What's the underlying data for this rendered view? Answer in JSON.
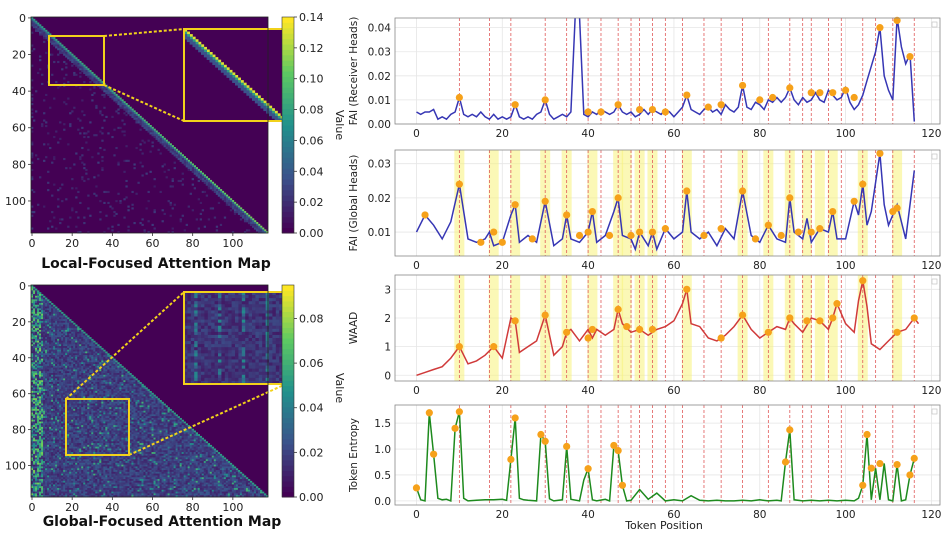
{
  "chart_data": [
    {
      "type": "heatmap",
      "title": "Local-Focused Attention Map",
      "pattern": "local",
      "x_ticks": [
        0,
        20,
        40,
        60,
        80,
        100
      ],
      "y_ticks": [
        0,
        20,
        40,
        60,
        80,
        100
      ],
      "size": 118,
      "colorbar_label": "Value",
      "colorbar_ticks": [
        "0.00",
        "0.02",
        "0.04",
        "0.06",
        "0.08",
        "0.10",
        "0.12",
        "0.14"
      ],
      "colorbar_range": [
        0,
        0.14
      ]
    },
    {
      "type": "heatmap",
      "title": "Global-Focused Attention Map",
      "pattern": "global",
      "x_ticks": [
        0,
        20,
        40,
        60,
        80,
        100
      ],
      "y_ticks": [
        0,
        20,
        40,
        60,
        80,
        100
      ],
      "size": 118,
      "colorbar_label": "Value",
      "colorbar_ticks": [
        "0.00",
        "0.02",
        "0.04",
        "0.06",
        "0.08"
      ],
      "colorbar_range": [
        0,
        0.095
      ]
    },
    {
      "type": "line",
      "ylabel": "FAI (Receiver Heads)",
      "xlim": [
        -5,
        122
      ],
      "ylim": [
        0,
        0.044
      ],
      "yticks": [
        "0.00",
        "0.01",
        "0.02",
        "0.03",
        "0.04"
      ],
      "ytick_values": [
        0,
        0.01,
        0.02,
        0.03,
        0.04
      ],
      "xticks": [
        "0",
        "20",
        "40",
        "60",
        "80",
        "100",
        "120"
      ],
      "color": "#3636b4",
      "x": [
        0,
        1,
        2,
        3,
        4,
        5,
        6,
        7,
        8,
        9,
        10,
        11,
        12,
        13,
        14,
        15,
        16,
        17,
        18,
        19,
        20,
        21,
        22,
        23,
        24,
        25,
        26,
        27,
        28,
        29,
        30,
        31,
        32,
        33,
        34,
        35,
        36,
        37,
        38,
        39,
        40,
        41,
        42,
        43,
        44,
        45,
        46,
        47,
        48,
        49,
        50,
        51,
        52,
        53,
        54,
        55,
        56,
        57,
        58,
        59,
        60,
        61,
        62,
        63,
        64,
        65,
        66,
        67,
        68,
        69,
        70,
        71,
        72,
        73,
        74,
        75,
        76,
        77,
        78,
        79,
        80,
        81,
        82,
        83,
        84,
        85,
        86,
        87,
        88,
        89,
        90,
        91,
        92,
        93,
        94,
        95,
        96,
        97,
        98,
        99,
        100,
        101,
        102,
        103,
        104,
        105,
        106,
        107,
        108,
        109,
        110,
        111,
        112,
        113,
        114,
        115,
        116
      ],
      "y": [
        0.005,
        0.004,
        0.005,
        0.005,
        0.006,
        0.002,
        0.003,
        0.002,
        0.004,
        0.005,
        0.011,
        0.004,
        0.003,
        0.004,
        0.003,
        0.005,
        0.003,
        0.002,
        0.004,
        0.002,
        0.003,
        0.002,
        0.003,
        0.008,
        0.003,
        0.002,
        0.003,
        0.002,
        0.004,
        0.005,
        0.01,
        0.004,
        0.002,
        0.003,
        0.004,
        0.003,
        0.005,
        0.045,
        0.045,
        0.004,
        0.003,
        0.005,
        0.004,
        0.006,
        0.005,
        0.004,
        0.005,
        0.008,
        0.005,
        0.004,
        0.005,
        0.003,
        0.004,
        0.006,
        0.004,
        0.006,
        0.005,
        0.004,
        0.006,
        0.005,
        0.003,
        0.005,
        0.007,
        0.012,
        0.006,
        0.005,
        0.004,
        0.006,
        0.007,
        0.005,
        0.006,
        0.004,
        0.008,
        0.006,
        0.005,
        0.007,
        0.016,
        0.007,
        0.006,
        0.009,
        0.008,
        0.006,
        0.01,
        0.009,
        0.011,
        0.009,
        0.011,
        0.015,
        0.01,
        0.008,
        0.011,
        0.009,
        0.01,
        0.013,
        0.01,
        0.009,
        0.014,
        0.012,
        0.01,
        0.011,
        0.015,
        0.009,
        0.006,
        0.008,
        0.012,
        0.018,
        0.024,
        0.03,
        0.04,
        0.02,
        0.014,
        0.01,
        0.044,
        0.032,
        0.025,
        0.029,
        0.001
      ],
      "markers": [
        [
          10,
          0.011
        ],
        [
          23,
          0.008
        ],
        [
          30,
          0.01
        ],
        [
          40,
          0.005
        ],
        [
          43,
          0.005
        ],
        [
          47,
          0.008
        ],
        [
          52,
          0.006
        ],
        [
          55,
          0.006
        ],
        [
          58,
          0.005
        ],
        [
          63,
          0.012
        ],
        [
          68,
          0.007
        ],
        [
          71,
          0.008
        ],
        [
          76,
          0.016
        ],
        [
          80,
          0.01
        ],
        [
          83,
          0.011
        ],
        [
          87,
          0.015
        ],
        [
          92,
          0.013
        ],
        [
          94,
          0.013
        ],
        [
          97,
          0.013
        ],
        [
          100,
          0.014
        ],
        [
          102,
          0.011
        ],
        [
          108,
          0.04
        ],
        [
          112,
          0.043
        ],
        [
          115,
          0.028
        ]
      ],
      "vlines": [
        10,
        17,
        22,
        30,
        35,
        40,
        43,
        47,
        50,
        52,
        55,
        58,
        62,
        67,
        71,
        76,
        82,
        87,
        90,
        92,
        96,
        99,
        104,
        107,
        111,
        116
      ]
    },
    {
      "type": "line",
      "ylabel": "FAI (Global Heads)",
      "xlim": [
        -5,
        122
      ],
      "ylim": [
        0.003,
        0.034
      ],
      "yticks": [
        "0.01",
        "0.02",
        "0.03"
      ],
      "ytick_values": [
        0.01,
        0.02,
        0.03
      ],
      "xticks": [
        "0",
        "20",
        "40",
        "60",
        "80",
        "100",
        "120"
      ],
      "color": "#3636b4",
      "x": [
        0,
        2,
        4,
        6,
        8,
        10,
        12,
        14,
        16,
        17,
        18,
        20,
        22,
        23,
        24,
        26,
        28,
        30,
        32,
        34,
        35,
        36,
        38,
        40,
        41,
        42,
        44,
        46,
        47,
        48,
        50,
        51,
        52,
        54,
        55,
        56,
        58,
        60,
        62,
        63,
        64,
        66,
        68,
        70,
        72,
        74,
        76,
        78,
        80,
        82,
        84,
        86,
        87,
        88,
        90,
        91,
        92,
        94,
        96,
        97,
        98,
        100,
        102,
        103,
        104,
        105,
        106,
        108,
        109,
        110,
        112,
        114,
        116
      ],
      "y": [
        0.01,
        0.015,
        0.012,
        0.008,
        0.013,
        0.024,
        0.008,
        0.007,
        0.008,
        0.01,
        0.006,
        0.007,
        0.015,
        0.018,
        0.007,
        0.009,
        0.007,
        0.019,
        0.006,
        0.008,
        0.015,
        0.008,
        0.007,
        0.01,
        0.016,
        0.007,
        0.009,
        0.016,
        0.02,
        0.009,
        0.008,
        0.005,
        0.01,
        0.006,
        0.01,
        0.005,
        0.011,
        0.008,
        0.01,
        0.022,
        0.01,
        0.008,
        0.01,
        0.006,
        0.011,
        0.008,
        0.022,
        0.009,
        0.007,
        0.012,
        0.008,
        0.007,
        0.02,
        0.01,
        0.008,
        0.014,
        0.007,
        0.011,
        0.01,
        0.016,
        0.008,
        0.008,
        0.019,
        0.015,
        0.024,
        0.012,
        0.016,
        0.033,
        0.018,
        0.012,
        0.018,
        0.008,
        0.028
      ],
      "markers": [
        [
          2,
          0.015
        ],
        [
          10,
          0.024
        ],
        [
          15,
          0.007
        ],
        [
          18,
          0.01
        ],
        [
          20,
          0.007
        ],
        [
          23,
          0.018
        ],
        [
          27,
          0.008
        ],
        [
          30,
          0.019
        ],
        [
          35,
          0.015
        ],
        [
          38,
          0.009
        ],
        [
          40,
          0.01
        ],
        [
          41,
          0.016
        ],
        [
          45,
          0.009
        ],
        [
          47,
          0.02
        ],
        [
          50,
          0.009
        ],
        [
          52,
          0.01
        ],
        [
          55,
          0.01
        ],
        [
          58,
          0.011
        ],
        [
          63,
          0.022
        ],
        [
          67,
          0.009
        ],
        [
          71,
          0.011
        ],
        [
          76,
          0.022
        ],
        [
          79,
          0.008
        ],
        [
          82,
          0.012
        ],
        [
          85,
          0.009
        ],
        [
          87,
          0.02
        ],
        [
          89,
          0.01
        ],
        [
          92,
          0.01
        ],
        [
          94,
          0.011
        ],
        [
          97,
          0.016
        ],
        [
          102,
          0.019
        ],
        [
          104,
          0.024
        ],
        [
          108,
          0.033
        ],
        [
          111,
          0.016
        ],
        [
          112,
          0.017
        ]
      ],
      "vlines": [
        10,
        17,
        22,
        30,
        35,
        40,
        43,
        47,
        50,
        52,
        55,
        58,
        62,
        67,
        71,
        76,
        82,
        87,
        90,
        92,
        96,
        99,
        104,
        107,
        111,
        116
      ],
      "highlights": [
        10,
        18,
        23,
        30,
        35,
        41,
        47,
        49,
        52,
        55,
        63,
        76,
        82,
        87,
        91,
        94,
        97,
        104,
        112
      ]
    },
    {
      "type": "line",
      "ylabel": "WAAD",
      "xlim": [
        -5,
        122
      ],
      "ylim": [
        -0.2,
        3.5
      ],
      "yticks": [
        "0",
        "1",
        "2",
        "3"
      ],
      "ytick_values": [
        0,
        1,
        2,
        3
      ],
      "xticks": [
        "0",
        "20",
        "40",
        "60",
        "80",
        "100",
        "120"
      ],
      "color": "#d03a3a",
      "x": [
        0,
        2,
        4,
        6,
        8,
        10,
        12,
        14,
        16,
        18,
        20,
        22,
        23,
        24,
        26,
        28,
        30,
        32,
        34,
        35,
        36,
        38,
        40,
        41,
        42,
        44,
        46,
        47,
        48,
        50,
        52,
        54,
        56,
        58,
        60,
        62,
        63,
        64,
        66,
        68,
        70,
        72,
        74,
        76,
        78,
        80,
        82,
        84,
        86,
        87,
        88,
        90,
        92,
        94,
        96,
        97,
        98,
        100,
        102,
        103,
        104,
        105,
        106,
        108,
        110,
        112,
        114,
        116,
        117
      ],
      "y": [
        0,
        0.1,
        0.2,
        0.3,
        0.6,
        1.0,
        0.4,
        0.5,
        0.7,
        1.0,
        0.6,
        2.0,
        1.9,
        0.8,
        1.0,
        1.2,
        2.1,
        0.7,
        1.0,
        1.5,
        1.6,
        1.2,
        1.6,
        1.3,
        1.6,
        1.4,
        1.6,
        2.3,
        1.8,
        1.5,
        1.6,
        1.4,
        1.6,
        1.7,
        1.9,
        2.5,
        3.0,
        1.8,
        1.7,
        1.3,
        1.2,
        1.4,
        1.7,
        2.1,
        1.6,
        1.3,
        1.5,
        1.7,
        1.6,
        2.0,
        1.8,
        1.5,
        2.0,
        1.9,
        1.6,
        2.0,
        2.5,
        1.8,
        1.5,
        2.6,
        3.3,
        2.4,
        1.1,
        0.9,
        1.2,
        1.5,
        1.6,
        2.0,
        1.8
      ],
      "markers": [
        [
          10,
          1.0
        ],
        [
          18,
          1.0
        ],
        [
          23,
          1.9
        ],
        [
          30,
          2.1
        ],
        [
          35,
          1.5
        ],
        [
          40,
          1.3
        ],
        [
          41,
          1.6
        ],
        [
          47,
          2.3
        ],
        [
          49,
          1.7
        ],
        [
          52,
          1.6
        ],
        [
          55,
          1.6
        ],
        [
          63,
          3.0
        ],
        [
          71,
          1.3
        ],
        [
          76,
          2.1
        ],
        [
          82,
          1.5
        ],
        [
          87,
          2.0
        ],
        [
          91,
          1.9
        ],
        [
          94,
          1.9
        ],
        [
          97,
          2.0
        ],
        [
          98,
          2.5
        ],
        [
          104,
          3.3
        ],
        [
          112,
          1.5
        ],
        [
          116,
          2.0
        ]
      ],
      "vlines": [
        10,
        17,
        22,
        30,
        35,
        40,
        43,
        47,
        50,
        52,
        55,
        58,
        62,
        67,
        71,
        76,
        82,
        87,
        90,
        92,
        96,
        99,
        104,
        107,
        111,
        116
      ],
      "highlights": [
        10,
        18,
        23,
        30,
        35,
        41,
        47,
        49,
        52,
        55,
        63,
        76,
        82,
        87,
        91,
        94,
        97,
        104,
        112
      ]
    },
    {
      "type": "line",
      "ylabel": "Token Entropy",
      "xlabel": "Token Position",
      "xlim": [
        -5,
        122
      ],
      "ylim": [
        -0.08,
        1.85
      ],
      "yticks": [
        "0.0",
        "0.5",
        "1.0",
        "1.5"
      ],
      "ytick_values": [
        0,
        0.5,
        1.0,
        1.5
      ],
      "xticks": [
        "0",
        "20",
        "40",
        "60",
        "80",
        "100",
        "120"
      ],
      "color": "#1d8a1d",
      "x": [
        0,
        1,
        2,
        3,
        4,
        5,
        6,
        7,
        8,
        9,
        10,
        11,
        12,
        14,
        16,
        18,
        20,
        21,
        22,
        23,
        24,
        25,
        26,
        28,
        29,
        30,
        31,
        32,
        34,
        35,
        36,
        38,
        39,
        40,
        41,
        42,
        44,
        45,
        46,
        47,
        48,
        49,
        50,
        52,
        54,
        56,
        58,
        60,
        62,
        64,
        66,
        68,
        70,
        72,
        74,
        76,
        78,
        80,
        82,
        84,
        85,
        86,
        87,
        88,
        90,
        92,
        94,
        96,
        98,
        100,
        102,
        103,
        104,
        105,
        106,
        107,
        108,
        109,
        110,
        111,
        112,
        113,
        114,
        115,
        116
      ],
      "y": [
        0.25,
        0.02,
        0.0,
        1.7,
        0.9,
        0.05,
        0.02,
        0.03,
        0.0,
        1.4,
        1.72,
        0.05,
        0.0,
        0.01,
        0.02,
        0.02,
        0.03,
        0.01,
        0.8,
        1.6,
        0.05,
        0.02,
        0.01,
        0.0,
        1.28,
        1.15,
        0.04,
        0.0,
        0.02,
        1.05,
        0.03,
        0.0,
        0.4,
        0.62,
        0.02,
        0.0,
        0.03,
        0.0,
        1.07,
        0.97,
        0.3,
        0.0,
        0.01,
        0.22,
        0.03,
        0.15,
        0.0,
        0.02,
        0.0,
        0.1,
        0.01,
        0.0,
        0.01,
        0.0,
        0.0,
        0.01,
        0.0,
        0.02,
        0.0,
        0.01,
        0.0,
        0.75,
        1.37,
        0.02,
        0.0,
        0.01,
        0.0,
        0.01,
        0.0,
        0.01,
        0.0,
        0.05,
        0.3,
        1.28,
        0.02,
        0.63,
        0.02,
        0.72,
        0.02,
        0.0,
        0.7,
        0.0,
        0.02,
        0.5,
        0.82
      ],
      "markers": [
        [
          0,
          0.25
        ],
        [
          3,
          1.7
        ],
        [
          4,
          0.9
        ],
        [
          9,
          1.4
        ],
        [
          10,
          1.72
        ],
        [
          22,
          0.8
        ],
        [
          23,
          1.6
        ],
        [
          29,
          1.28
        ],
        [
          30,
          1.15
        ],
        [
          35,
          1.05
        ],
        [
          40,
          0.62
        ],
        [
          46,
          1.07
        ],
        [
          47,
          0.97
        ],
        [
          48,
          0.3
        ],
        [
          86,
          0.75
        ],
        [
          87,
          1.37
        ],
        [
          104,
          0.3
        ],
        [
          105,
          1.28
        ],
        [
          106,
          0.63
        ],
        [
          108,
          0.72
        ],
        [
          112,
          0.7
        ],
        [
          115,
          0.5
        ],
        [
          116,
          0.82
        ]
      ],
      "vlines": [
        10,
        17,
        22,
        30,
        35,
        40,
        43,
        47,
        50,
        52,
        55,
        58,
        62,
        67,
        71,
        76,
        82,
        87,
        90,
        92,
        96,
        99,
        104,
        107,
        111,
        116
      ]
    }
  ]
}
